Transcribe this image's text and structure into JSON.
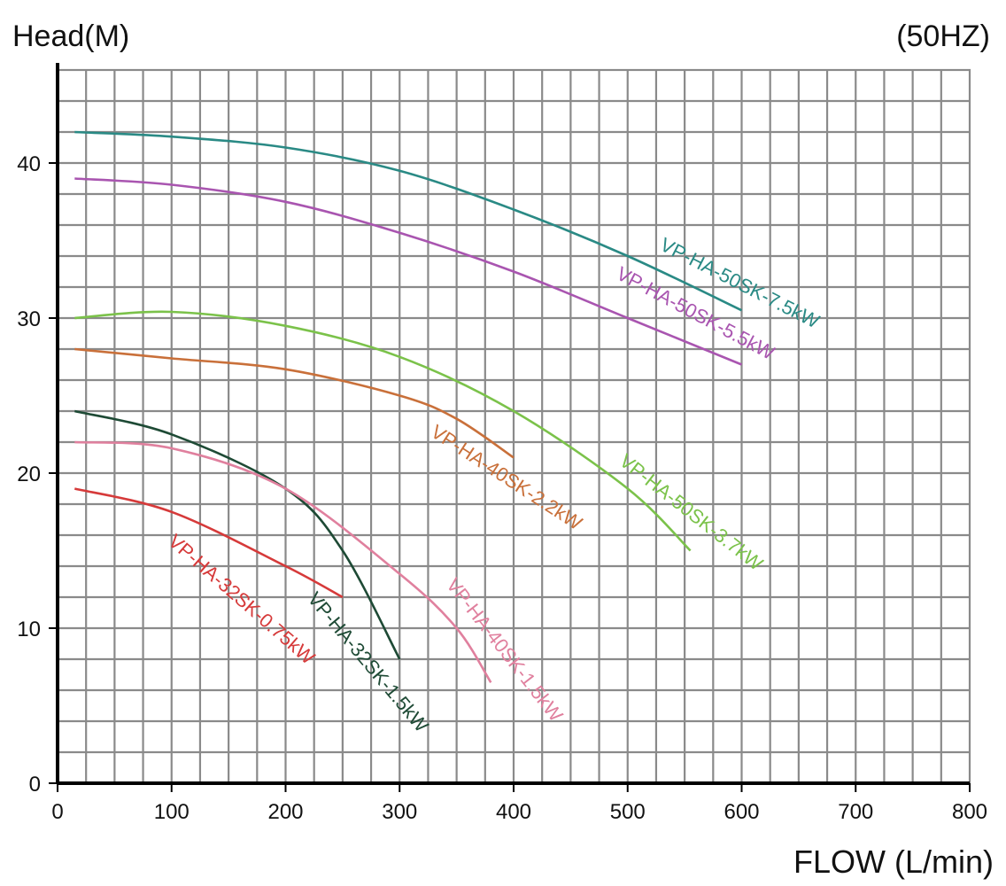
{
  "chart_data": {
    "type": "line",
    "title": "",
    "frequency_label": "(50HZ)",
    "xlabel": "FLOW (L/min)",
    "ylabel": "Head(M)",
    "xlim": [
      0,
      800
    ],
    "ylim": [
      0,
      46
    ],
    "x_ticks": [
      0,
      100,
      200,
      300,
      400,
      500,
      600,
      700,
      800
    ],
    "y_ticks": [
      0,
      10,
      20,
      30,
      40
    ],
    "grid": true,
    "legend": "inline curve labels",
    "series": [
      {
        "name": "VP-HA-50SK-7.5kW",
        "color": "#2a8a85",
        "points": [
          [
            15,
            42
          ],
          [
            100,
            41.7
          ],
          [
            200,
            41
          ],
          [
            300,
            39.5
          ],
          [
            400,
            37
          ],
          [
            500,
            34
          ],
          [
            600,
            30.5
          ]
        ]
      },
      {
        "name": "VP-HA-50SK-5.5kW",
        "color": "#a955b0",
        "points": [
          [
            15,
            39
          ],
          [
            100,
            38.6
          ],
          [
            200,
            37.5
          ],
          [
            300,
            35.5
          ],
          [
            400,
            33
          ],
          [
            500,
            30
          ],
          [
            600,
            27
          ]
        ]
      },
      {
        "name": "VP-HA-50SK-3.7kW",
        "color": "#7bc24a",
        "points": [
          [
            15,
            30
          ],
          [
            100,
            30.4
          ],
          [
            200,
            29.5
          ],
          [
            300,
            27.5
          ],
          [
            400,
            24
          ],
          [
            500,
            19
          ],
          [
            555,
            15
          ]
        ]
      },
      {
        "name": "VP-HA-40SK-2.2kW",
        "color": "#c9703a",
        "points": [
          [
            15,
            28
          ],
          [
            100,
            27.4
          ],
          [
            200,
            26.7
          ],
          [
            300,
            25
          ],
          [
            350,
            23.5
          ],
          [
            400,
            21
          ]
        ]
      },
      {
        "name": "VP-HA-32SK-1.5kW",
        "color": "#1e4a35",
        "points": [
          [
            15,
            24
          ],
          [
            100,
            22.5
          ],
          [
            200,
            19
          ],
          [
            250,
            15
          ],
          [
            300,
            8
          ]
        ]
      },
      {
        "name": "VP-HA-40SK-1.5kW",
        "color": "#e0809e",
        "points": [
          [
            15,
            22
          ],
          [
            100,
            21.6
          ],
          [
            200,
            19
          ],
          [
            300,
            13.5
          ],
          [
            350,
            10
          ],
          [
            380,
            6.5
          ]
        ]
      },
      {
        "name": "VP-HA-32SK-0.75kW",
        "color": "#d63a3a",
        "points": [
          [
            15,
            19
          ],
          [
            100,
            17.5
          ],
          [
            200,
            14
          ],
          [
            250,
            12
          ]
        ]
      }
    ],
    "annotations": [
      {
        "text": "VP-HA-50SK-7.5kW",
        "series": 0
      },
      {
        "text": "VP-HA-50SK-5.5kW",
        "series": 1
      },
      {
        "text": "VP-HA-50SK-3.7kW",
        "series": 2
      },
      {
        "text": "VP-HA-40SK-2.2kW",
        "series": 3
      },
      {
        "text": "VP-HA-32SK-1.5kW",
        "series": 4
      },
      {
        "text": "VP-HA-40SK-1.5kW",
        "series": 5
      },
      {
        "text": "VP-HA-32SK-0.75kW",
        "series": 6
      }
    ]
  }
}
